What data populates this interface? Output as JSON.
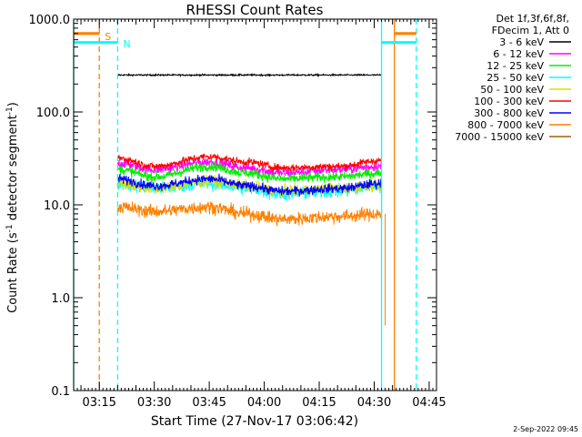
{
  "chart_data": {
    "type": "line",
    "title": "RHESSI Count Rates",
    "xlabel": "Start Time (27-Nov-17 03:06:42)",
    "ylabel_main": "Count Rate (s",
    "ylabel_exp1": "-1",
    "ylabel_mid": " detector segment",
    "ylabel_exp2": "-1",
    "ylabel_end": ")",
    "date_stamp": "2-Sep-2022 09:45",
    "y_scale": "log",
    "ylim": [
      0.1,
      1000
    ],
    "xlim": [
      "03:08:00",
      "04:47:00"
    ],
    "y_ticks": [
      {
        "value": 0.1,
        "label": "0.1"
      },
      {
        "value": 1,
        "label": "1.0"
      },
      {
        "value": 10,
        "label": "10.0"
      },
      {
        "value": 100,
        "label": "100.0"
      },
      {
        "value": 1000,
        "label": "1000.0"
      }
    ],
    "x_ticks": [
      {
        "time": "03:15",
        "label": "03:15"
      },
      {
        "time": "03:30",
        "label": "03:30"
      },
      {
        "time": "03:45",
        "label": "03:45"
      },
      {
        "time": "04:00",
        "label": "04:00"
      },
      {
        "time": "04:15",
        "label": "04:15"
      },
      {
        "time": "04:30",
        "label": "04:30"
      },
      {
        "time": "04:45",
        "label": "04:45"
      }
    ],
    "legend": {
      "placement": "top-right, outside plot",
      "header": [
        "Det 1f,3f,6f,8f,",
        "FDecim 1, Att 0"
      ]
    },
    "series": [
      {
        "name": "3 - 6 keV",
        "color": "#000000",
        "start": "03:20:00",
        "end": "04:32:00",
        "anchors": [
          [
            "03:20",
            250
          ],
          [
            "04:32",
            250
          ]
        ],
        "noise": 0.008
      },
      {
        "name": "6 - 12 keV",
        "color": "#ff00ff",
        "start": "03:20:00",
        "end": "04:32:00",
        "anchors": [
          [
            "03:20",
            28
          ],
          [
            "03:30",
            24
          ],
          [
            "03:45",
            29
          ],
          [
            "03:55",
            25
          ],
          [
            "04:05",
            22
          ],
          [
            "04:20",
            24
          ],
          [
            "04:32",
            26
          ]
        ],
        "noise": 0.05
      },
      {
        "name": "12 - 25 keV",
        "color": "#00ee00",
        "start": "03:20:00",
        "end": "04:32:00",
        "anchors": [
          [
            "03:20",
            24
          ],
          [
            "03:30",
            20
          ],
          [
            "03:45",
            26
          ],
          [
            "03:55",
            22
          ],
          [
            "04:05",
            19
          ],
          [
            "04:20",
            20
          ],
          [
            "04:32",
            22
          ]
        ],
        "noise": 0.05
      },
      {
        "name": "25 - 50 keV",
        "color": "#00ffff",
        "start": "03:20:00",
        "end": "04:32:00",
        "anchors": [
          [
            "03:20",
            17
          ],
          [
            "03:30",
            15
          ],
          [
            "03:45",
            17
          ],
          [
            "03:55",
            15
          ],
          [
            "04:05",
            13
          ],
          [
            "04:20",
            14
          ],
          [
            "04:32",
            16
          ]
        ],
        "noise": 0.07
      },
      {
        "name": "50 - 100 keV",
        "color": "#dddd00",
        "start": "03:20:00",
        "end": "04:32:00",
        "anchors": [
          [
            "03:20",
            17
          ],
          [
            "03:30",
            15
          ],
          [
            "03:45",
            18
          ],
          [
            "03:55",
            16
          ],
          [
            "04:05",
            14
          ],
          [
            "04:20",
            15
          ],
          [
            "04:32",
            16
          ]
        ],
        "noise": 0.06
      },
      {
        "name": "100 - 300 keV",
        "color": "#ff0000",
        "start": "03:20:00",
        "end": "04:32:00",
        "anchors": [
          [
            "03:20",
            32
          ],
          [
            "03:30",
            26
          ],
          [
            "03:45",
            33
          ],
          [
            "03:55",
            29
          ],
          [
            "04:05",
            25
          ],
          [
            "04:20",
            26
          ],
          [
            "04:32",
            30
          ]
        ],
        "noise": 0.04
      },
      {
        "name": "300 - 800 keV",
        "color": "#0000ff",
        "start": "03:20:00",
        "end": "04:32:00",
        "anchors": [
          [
            "03:20",
            19
          ],
          [
            "03:30",
            16
          ],
          [
            "03:45",
            19
          ],
          [
            "03:55",
            16
          ],
          [
            "04:05",
            14
          ],
          [
            "04:20",
            15
          ],
          [
            "04:32",
            17
          ]
        ],
        "noise": 0.05
      },
      {
        "name": "800 - 7000 keV",
        "color": "#ff8000",
        "start": "03:20:00",
        "end": "04:32:00",
        "anchors": [
          [
            "03:20",
            9.5
          ],
          [
            "03:30",
            8.5
          ],
          [
            "03:45",
            9.5
          ],
          [
            "03:55",
            8
          ],
          [
            "04:05",
            7
          ],
          [
            "04:20",
            7.5
          ],
          [
            "04:32",
            8
          ]
        ],
        "noise": 0.07
      },
      {
        "name": "7000 - 15000 keV",
        "color": "#a06000",
        "start": null,
        "end": null,
        "anchors": [],
        "noise": 0
      }
    ],
    "markers": [
      {
        "label": "S",
        "color": "#ff8000",
        "time": "03:15:00",
        "style": "dashed"
      },
      {
        "label": "N",
        "color": "#00ffff",
        "time": "03:20:00",
        "style": "dashed"
      },
      {
        "label": "",
        "color": "#00ffff",
        "time": "03:08:00",
        "style": "solid"
      },
      {
        "label": "",
        "color": "#00ffff",
        "time": "04:32:00",
        "style": "solid"
      },
      {
        "label": "",
        "color": "#ff8000",
        "time": "04:35:30",
        "style": "solid"
      },
      {
        "label": "",
        "color": "#00ffff",
        "time": "04:41:30",
        "style": "dashed"
      }
    ],
    "intervals": [
      {
        "color": "#ff8000",
        "from": "03:08:00",
        "to": "03:15:00",
        "value": 700
      },
      {
        "color": "#00ffff",
        "from": "03:08:00",
        "to": "03:20:00",
        "value": 560
      },
      {
        "color": "#ff8000",
        "from": "04:35:30",
        "to": "04:41:30",
        "value": 700
      },
      {
        "color": "#00ffff",
        "from": "04:32:00",
        "to": "04:41:30",
        "value": 560
      }
    ]
  }
}
